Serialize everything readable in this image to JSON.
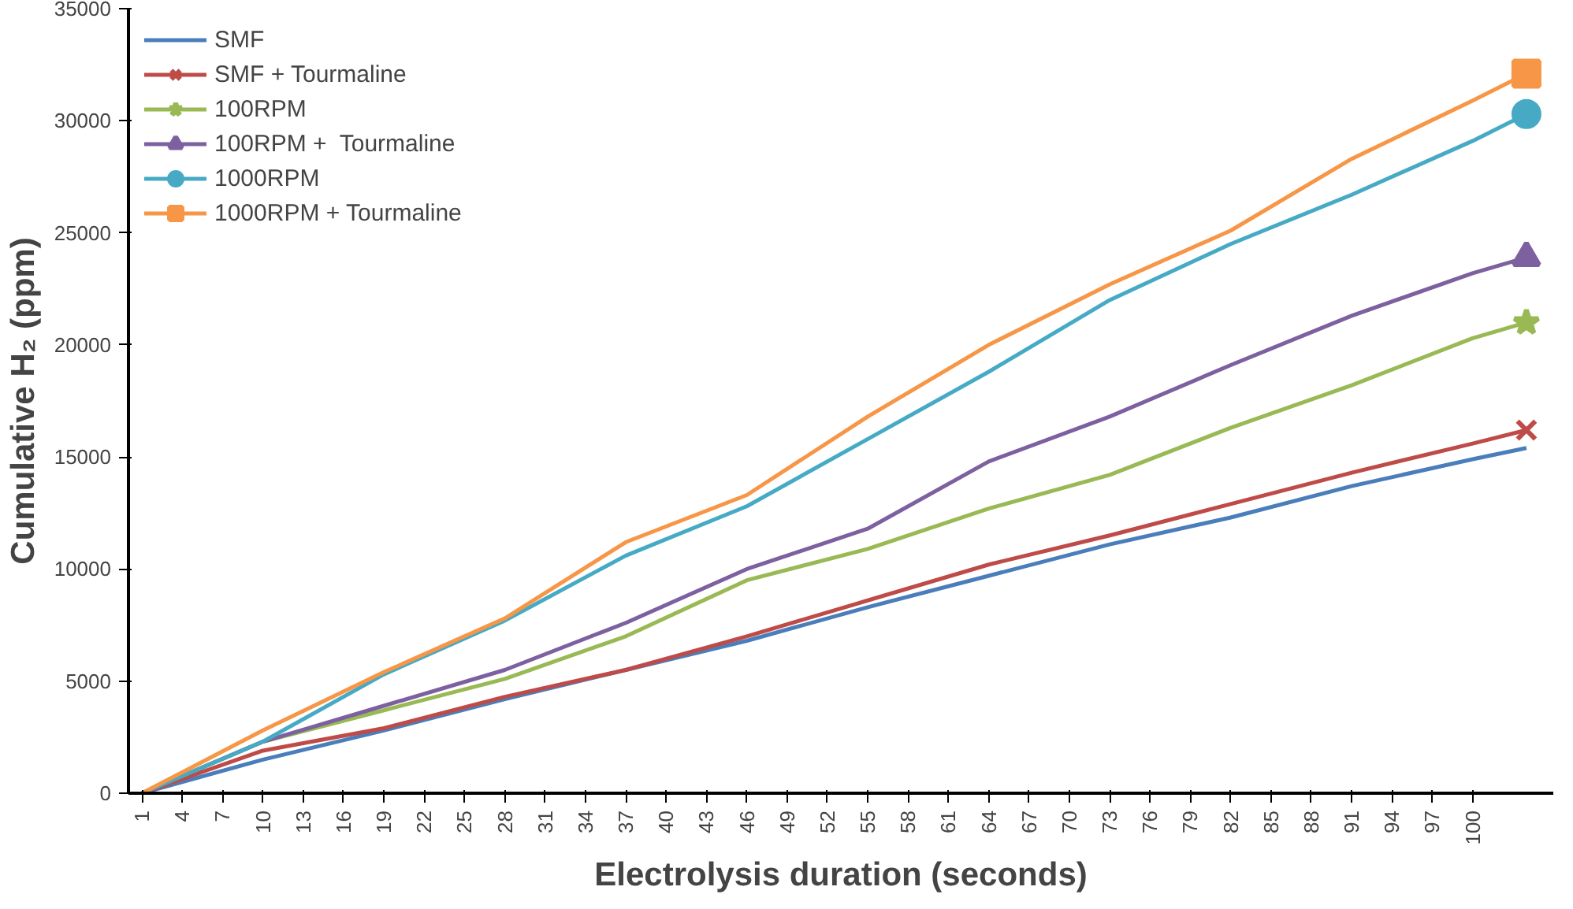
{
  "chart_data": {
    "type": "line",
    "xlabel": "Electrolysis duration (seconds)",
    "ylabel": "Cumulative H₂ (ppm)",
    "x": [
      1,
      10,
      19,
      28,
      37,
      46,
      55,
      64,
      73,
      82,
      91,
      100,
      104
    ],
    "xlim": [
      0,
      106
    ],
    "xticks": [
      1,
      4,
      7,
      10,
      13,
      16,
      19,
      22,
      25,
      28,
      31,
      34,
      37,
      40,
      43,
      46,
      49,
      52,
      55,
      58,
      61,
      64,
      67,
      70,
      73,
      76,
      79,
      82,
      85,
      88,
      91,
      94,
      97,
      100
    ],
    "ylim": [
      0,
      35000
    ],
    "yticks": [
      0,
      5000,
      10000,
      15000,
      20000,
      25000,
      30000,
      35000
    ],
    "grid": false,
    "legend": "top left",
    "series": [
      {
        "name": "SMF",
        "color": "#4a7ebb",
        "values": [
          0,
          1500,
          2800,
          4200,
          5500,
          6800,
          8300,
          9700,
          11100,
          12300,
          13700,
          14900,
          15400
        ]
      },
      {
        "name": "SMF + Tourmaline",
        "color": "#be4b48",
        "values": [
          0,
          1900,
          2900,
          4300,
          5500,
          7000,
          8600,
          10200,
          11500,
          12900,
          14300,
          15600,
          16200
        ]
      },
      {
        "name": "100RPM",
        "color": "#98b954",
        "values": [
          0,
          2300,
          3700,
          5100,
          7000,
          9500,
          10900,
          12700,
          14200,
          16300,
          18200,
          20300,
          21000
        ]
      },
      {
        "name": "100RPM +  Tourmaline",
        "color": "#7d60a0",
        "values": [
          0,
          2300,
          3900,
          5500,
          7600,
          10000,
          11800,
          14800,
          16800,
          19100,
          21300,
          23200,
          23900
        ]
      },
      {
        "name": "1000RPM",
        "color": "#46aac5",
        "values": [
          0,
          2300,
          5300,
          7700,
          10600,
          12800,
          15800,
          18800,
          22000,
          24500,
          26700,
          29100,
          30300
        ]
      },
      {
        "name": "1000RPM + Tourmaline",
        "color": "#f79646",
        "values": [
          0,
          2800,
          5400,
          7800,
          11200,
          13300,
          16800,
          20000,
          22700,
          25100,
          28300,
          30900,
          32100
        ]
      },
      {
        "type": "scatter",
        "marker": "cross",
        "color": "#be4b48",
        "values": [
          null,
          null,
          null,
          null,
          null,
          null,
          null,
          null,
          null,
          null,
          null,
          null,
          16200
        ]
      },
      {
        "type": "scatter",
        "marker": "star",
        "color": "#98b954",
        "values": [
          null,
          null,
          null,
          null,
          null,
          null,
          null,
          null,
          null,
          null,
          null,
          null,
          21000
        ]
      },
      {
        "type": "scatter",
        "marker": "triangle",
        "color": "#7d60a0",
        "values": [
          null,
          null,
          null,
          null,
          null,
          null,
          null,
          null,
          null,
          null,
          null,
          null,
          23900
        ]
      },
      {
        "type": "scatter",
        "marker": "circle",
        "color": "#46aac5",
        "values": [
          null,
          null,
          null,
          null,
          null,
          null,
          null,
          null,
          null,
          null,
          null,
          null,
          30300
        ]
      },
      {
        "type": "scatter",
        "marker": "square",
        "color": "#f79646",
        "values": [
          null,
          null,
          null,
          null,
          null,
          null,
          null,
          null,
          null,
          null,
          null,
          null,
          32100
        ]
      }
    ]
  }
}
